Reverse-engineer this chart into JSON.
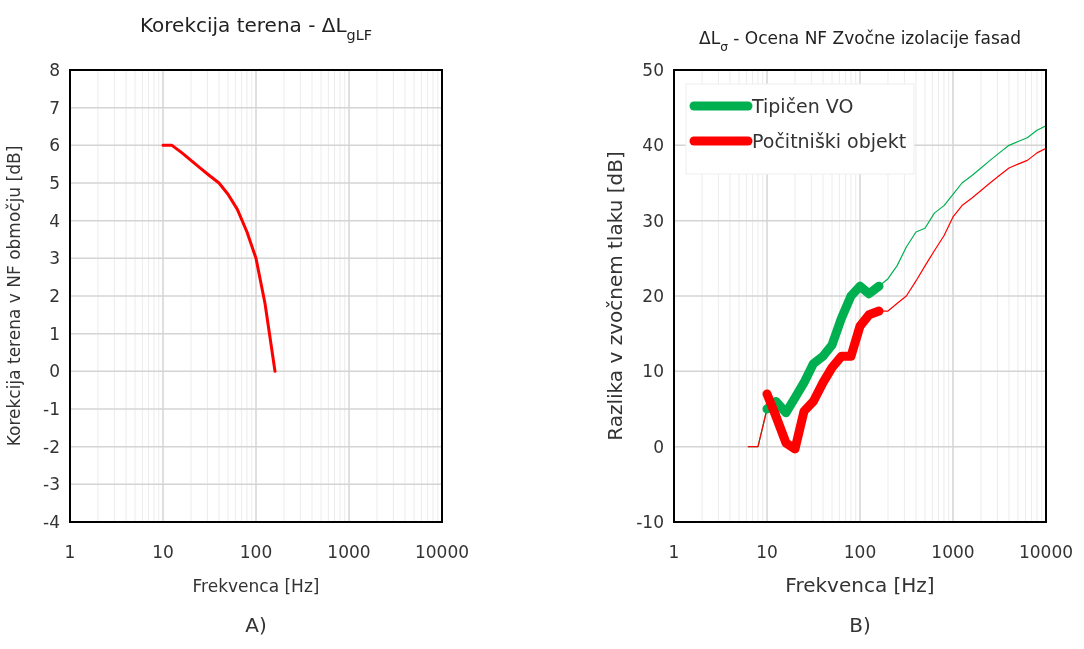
{
  "chart_data": [
    {
      "type": "line",
      "title": "Korekcija terena - ΔL$_{gLF}$",
      "xlabel": "Frekvenca [Hz]",
      "ylabel": "Korekcija terena v NF območju [dB]",
      "log": "x",
      "grid": true,
      "legend": false,
      "annotations": [
        "A)"
      ],
      "xlim": [
        1,
        10000
      ],
      "xticks": [
        1,
        10,
        100,
        1000,
        10000
      ],
      "ylim": [
        -4,
        8
      ],
      "yticks": [
        -4,
        -3,
        -2,
        -1,
        0,
        1,
        2,
        3,
        4,
        5,
        6,
        7,
        8
      ],
      "series": [
        {
          "color": "#ff0000",
          "x": [
            10,
            12.5,
            16,
            20,
            25,
            31.5,
            40,
            50,
            63,
            80,
            100,
            125,
            160
          ],
          "values": [
            6,
            6,
            5.8,
            5.6,
            5.4,
            5.2,
            5,
            4.7,
            4.3,
            3.7,
            3,
            1.8,
            0
          ]
        }
      ]
    },
    {
      "type": "line",
      "title": "ΔL$_{σ}$ - Ocena NF Zvočne izolacije fasad",
      "xlabel": "Frekvenca [Hz]",
      "ylabel": "Razlika v zvočnem tlaku [dB]",
      "log": "x",
      "grid": true,
      "legend": "top left",
      "annotations": [
        "B)"
      ],
      "xlim": [
        1,
        10000
      ],
      "xticks": [
        1,
        10,
        100,
        1000,
        10000
      ],
      "ylim": [
        -10,
        50
      ],
      "yticks": [
        -10,
        0,
        10,
        20,
        30,
        40,
        50
      ],
      "series": [
        {
          "color": "#00b050",
          "x": [
            6.3,
            8,
            10,
            12.5,
            16,
            20,
            25,
            31.5,
            40,
            50,
            63,
            80,
            100,
            125,
            160,
            200,
            250,
            315,
            400,
            500,
            630,
            800,
            1000,
            1250,
            1600,
            2000,
            2500,
            3150,
            4000,
            5000,
            6300,
            8000,
            10000
          ],
          "values": [
            0,
            0,
            5,
            6,
            4.5,
            6.5,
            8.5,
            11,
            12,
            13.5,
            17,
            20,
            21.3,
            20.3,
            21.3,
            22.3,
            24,
            26.5,
            28.5,
            29,
            31,
            32,
            33.5,
            35,
            36,
            37,
            38,
            39,
            40,
            40.5,
            41,
            42,
            42.6
          ]
        },
        {
          "color": "#ff0000",
          "x": [
            6.3,
            8,
            10,
            12.5,
            16,
            20,
            25,
            31.5,
            40,
            50,
            63,
            80,
            100,
            125,
            160,
            200,
            250,
            315,
            400,
            500,
            630,
            800,
            1000,
            1250,
            1600,
            2000,
            2500,
            3150,
            4000,
            5000,
            6300,
            8000,
            10000
          ],
          "values": [
            0,
            0,
            5,
            6,
            0.5,
            -0.3,
            4.7,
            6,
            8.5,
            10.5,
            12,
            12,
            16,
            17.5,
            18,
            18,
            19,
            20,
            22,
            24,
            26,
            28,
            30.5,
            32,
            33,
            34,
            35,
            36,
            37,
            37.5,
            38,
            39,
            39.6
          ]
        },
        {
          "name": "Tipičen VO",
          "color": "#00b050",
          "x": [
            10,
            12.5,
            16,
            20,
            25,
            31.5,
            40,
            50,
            63,
            80,
            100,
            125,
            160
          ],
          "values": [
            5,
            6,
            4.5,
            6.5,
            8.5,
            11,
            12,
            13.5,
            17,
            20,
            21.3,
            20.3,
            21.3
          ]
        },
        {
          "name": "Počitniški objekt",
          "color": "#ff0000",
          "x": [
            10,
            12.5,
            16,
            20,
            25,
            31.5,
            40,
            50,
            63,
            80,
            100,
            125,
            160
          ],
          "values": [
            7,
            4,
            0.5,
            -0.3,
            4.7,
            6,
            8.5,
            10.5,
            12,
            12,
            16,
            17.5,
            18
          ]
        }
      ]
    }
  ]
}
